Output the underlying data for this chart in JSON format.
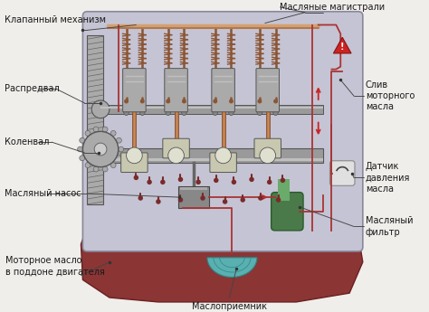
{
  "bg_color": "#f0eeeb",
  "engine_block_color": "#c5c4d4",
  "engine_block_border": "#888899",
  "oil_pan_color": "#8B3535",
  "metal_gray": "#888888",
  "metal_mid": "#9a9a9a",
  "metal_light": "#c0c0c0",
  "metal_dark": "#555555",
  "metal_silver": "#b8b8b8",
  "spring_color": "#8B5533",
  "rod_color": "#8B5533",
  "arrow_color": "#cc2222",
  "filter_color": "#4a7a4a",
  "strainer_color": "#5ab0b0",
  "gauge_color": "#e0e0e0",
  "oil_drop_color": "#7a2a2a",
  "oil_line_color": "#aa3333",
  "piston_color": "#aaaaaa",
  "bearing_color": "#c8c8b0",
  "labels": {
    "valve_mechanism": "Клапанный механизм",
    "oil_mains": "Масляные магистрали",
    "camshaft": "Распредвал",
    "crankshaft": "Коленвал",
    "oil_pump": "Масляный насос",
    "motor_oil": "Моторное масло\nв поддоне двигателя",
    "strainer": "Маслоприемник",
    "oil_drain": "Слив\nмоторного\nмасла",
    "pressure_sensor": "Датчик\nдавления\nмасла",
    "oil_filter": "Масляный\nфильтр"
  },
  "fs": 7.0
}
